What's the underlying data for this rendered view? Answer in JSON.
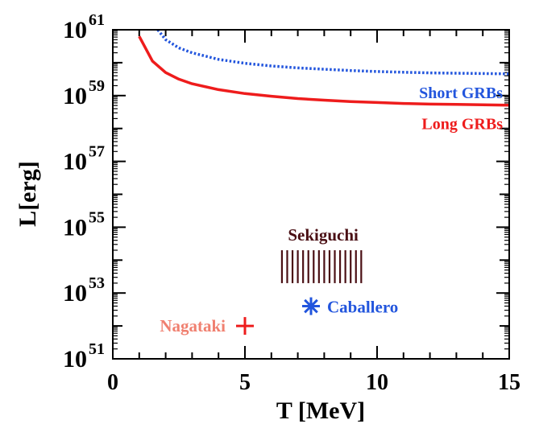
{
  "chart_data": {
    "type": "line",
    "xlabel": "T [MeV]",
    "ylabel": "L[erg]",
    "xlim": [
      0,
      15
    ],
    "ylim_log10": [
      51,
      61
    ],
    "y_scale": "log",
    "x_ticks": [
      {
        "value": 0,
        "label": "0"
      },
      {
        "value": 5,
        "label": "5"
      },
      {
        "value": 10,
        "label": "10"
      },
      {
        "value": 15,
        "label": "15"
      }
    ],
    "y_ticks": [
      {
        "exp": 51,
        "base": "10",
        "sup": "51"
      },
      {
        "exp": 53,
        "base": "10",
        "sup": "53"
      },
      {
        "exp": 55,
        "base": "10",
        "sup": "55"
      },
      {
        "exp": 57,
        "base": "10",
        "sup": "57"
      },
      {
        "exp": 59,
        "base": "10",
        "sup": "59"
      },
      {
        "exp": 61,
        "base": "10",
        "sup": "61"
      }
    ],
    "series": [
      {
        "name": "Short GRBs",
        "color": "#2255dd",
        "style": "dotted",
        "x": [
          1.7,
          2.0,
          2.5,
          3.0,
          4.0,
          5.0,
          6.0,
          7.0,
          8.0,
          9.0,
          10.0,
          11.0,
          12.0,
          13.0,
          14.0,
          15.0
        ],
        "y_log10": [
          61.0,
          60.7,
          60.45,
          60.3,
          60.1,
          59.98,
          59.9,
          59.84,
          59.8,
          59.76,
          59.73,
          59.71,
          59.69,
          59.68,
          59.67,
          59.66
        ]
      },
      {
        "name": "Long GRBs",
        "color": "#ee1c1c",
        "style": "solid",
        "x": [
          1.0,
          1.5,
          2.0,
          2.5,
          3.0,
          4.0,
          5.0,
          6.0,
          7.0,
          8.0,
          9.0,
          10.0,
          11.0,
          12.0,
          13.0,
          14.0,
          15.0
        ],
        "y_log10": [
          60.8,
          60.05,
          59.7,
          59.5,
          59.36,
          59.18,
          59.06,
          58.98,
          58.91,
          58.86,
          58.82,
          58.79,
          58.76,
          58.74,
          58.73,
          58.72,
          58.71
        ]
      }
    ],
    "points": [
      {
        "name": "Nagataki",
        "marker": "plus",
        "color": "#ee1c1c",
        "label_color": "#f08070",
        "x": 5.0,
        "y_log10": 52.0
      },
      {
        "name": "Caballero",
        "marker": "asterisk",
        "color": "#2255dd",
        "label_color": "#2255dd",
        "x": 7.5,
        "y_log10": 52.6
      }
    ],
    "regions": [
      {
        "name": "Sekiguchi",
        "marker": "vertical-bars",
        "color": "#4a0f14",
        "x_range": [
          6.4,
          9.4
        ],
        "y_log10_range": [
          53.3,
          54.3
        ],
        "bar_count": 16
      }
    ]
  }
}
